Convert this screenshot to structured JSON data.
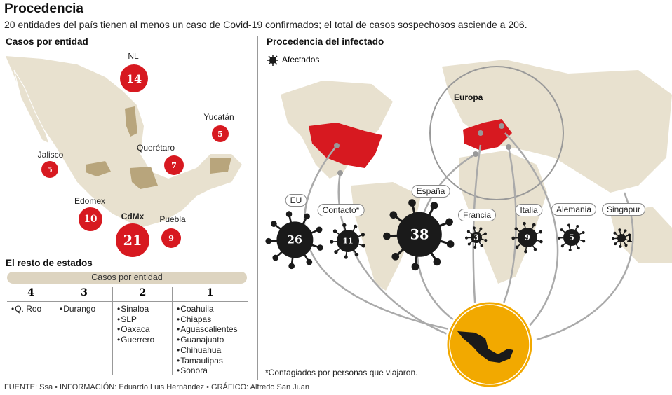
{
  "title": "Procedencia",
  "subtitle": "20 entidades del país tienen al menos un caso de Covid-19 confirmados; el total de casos sospechosos asciende a 206.",
  "left": {
    "heading": "Casos por entidad",
    "states": [
      {
        "name": "NL",
        "cases": "14"
      },
      {
        "name": "Yucatán",
        "cases": "5"
      },
      {
        "name": "Querétaro",
        "cases": "7"
      },
      {
        "name": "Jalisco",
        "cases": "5"
      },
      {
        "name": "Edomex",
        "cases": "10"
      },
      {
        "name": "CdMx",
        "cases": "21"
      },
      {
        "name": "Puebla",
        "cases": "9"
      }
    ],
    "rest_heading": "El resto de estados",
    "table_band": "Casos por entidad",
    "columns": [
      {
        "count": "4",
        "states": [
          "Q. Roo"
        ]
      },
      {
        "count": "3",
        "states": [
          "Durango"
        ]
      },
      {
        "count": "2",
        "states": [
          "Sinaloa",
          "SLP",
          "Oaxaca",
          "Guerrero"
        ]
      },
      {
        "count": "1",
        "states": [
          "Coahuila",
          "Chiapas",
          "Aguascalientes",
          "Guanajuato",
          "Chihuahua",
          "Tamaulipas",
          "Sonora"
        ]
      }
    ]
  },
  "right": {
    "heading": "Procedencia del infectado",
    "legend": "Afectados",
    "europe_label": "Europa",
    "origins": [
      {
        "name": "EU",
        "cases": "26"
      },
      {
        "name": "Contacto*",
        "cases": "11"
      },
      {
        "name": "España",
        "cases": "38"
      },
      {
        "name": "Francia",
        "cases": "3"
      },
      {
        "name": "Italia",
        "cases": "9"
      },
      {
        "name": "Alemania",
        "cases": "5"
      },
      {
        "name": "Singapur",
        "cases": "1"
      }
    ],
    "note": "*Contagiados por personas que viajaron."
  },
  "footer": "FUENTE: Ssa • INFORMACIÓN: Eduardo Luis Hernández • GRÁFICO: Alfredo San Juan",
  "colors": {
    "red": "#d71920",
    "land": "#e8e1cf",
    "highlight": "#b8a57c",
    "virus": "#1a1a1a",
    "mexico_circle": "#f2a900",
    "arrow": "#a9a9a9"
  }
}
